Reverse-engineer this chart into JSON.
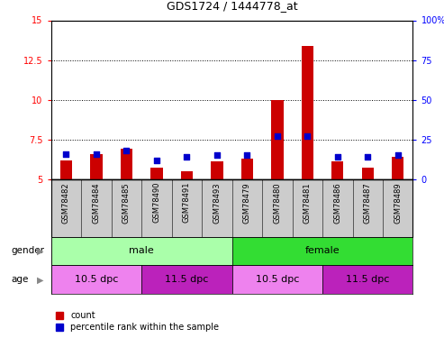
{
  "title": "GDS1724 / 1444778_at",
  "samples": [
    "GSM78482",
    "GSM78484",
    "GSM78485",
    "GSM78490",
    "GSM78491",
    "GSM78493",
    "GSM78479",
    "GSM78480",
    "GSM78481",
    "GSM78486",
    "GSM78487",
    "GSM78489"
  ],
  "count_values": [
    6.2,
    6.6,
    6.9,
    5.7,
    5.5,
    6.1,
    6.3,
    10.0,
    13.4,
    6.1,
    5.7,
    6.4
  ],
  "percentile_values": [
    16,
    16,
    18,
    12,
    14,
    15,
    15,
    27,
    27,
    14,
    14,
    15
  ],
  "ylim_left": [
    5,
    15
  ],
  "ylim_right": [
    0,
    100
  ],
  "yticks_left": [
    5,
    7.5,
    10,
    12.5,
    15
  ],
  "ytick_labels_left": [
    "5",
    "7.5",
    "10",
    "12.5",
    "15"
  ],
  "yticks_right": [
    0,
    25,
    50,
    75,
    100
  ],
  "ytick_labels_right": [
    "0",
    "25",
    "50",
    "75",
    "100%"
  ],
  "bar_color": "#cc0000",
  "dot_color": "#0000cc",
  "gender_groups": [
    {
      "label": "male",
      "start": 0,
      "end": 6,
      "color": "#aaffaa"
    },
    {
      "label": "female",
      "start": 6,
      "end": 12,
      "color": "#33dd33"
    }
  ],
  "age_colors": [
    "#ee82ee",
    "#bb22bb",
    "#ee82ee",
    "#bb22bb"
  ],
  "age_groups": [
    {
      "label": "10.5 dpc",
      "start": 0,
      "end": 3
    },
    {
      "label": "11.5 dpc",
      "start": 3,
      "end": 6
    },
    {
      "label": "10.5 dpc",
      "start": 6,
      "end": 9
    },
    {
      "label": "11.5 dpc",
      "start": 9,
      "end": 12
    }
  ],
  "xlabel_bg": "#cccccc",
  "legend_red_label": "count",
  "legend_blue_label": "percentile rank within the sample",
  "gender_label": "gender",
  "age_label": "age",
  "bar_width": 0.4,
  "dot_size": 18
}
